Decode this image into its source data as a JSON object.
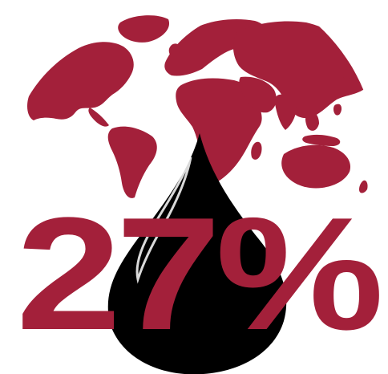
{
  "infographic": {
    "statistic": "27%",
    "colors": {
      "accent": "#a3203a",
      "oil": "#000000",
      "background": "#ffffff"
    },
    "icons": [
      "globe-icon",
      "oil-drop-icon"
    ]
  }
}
